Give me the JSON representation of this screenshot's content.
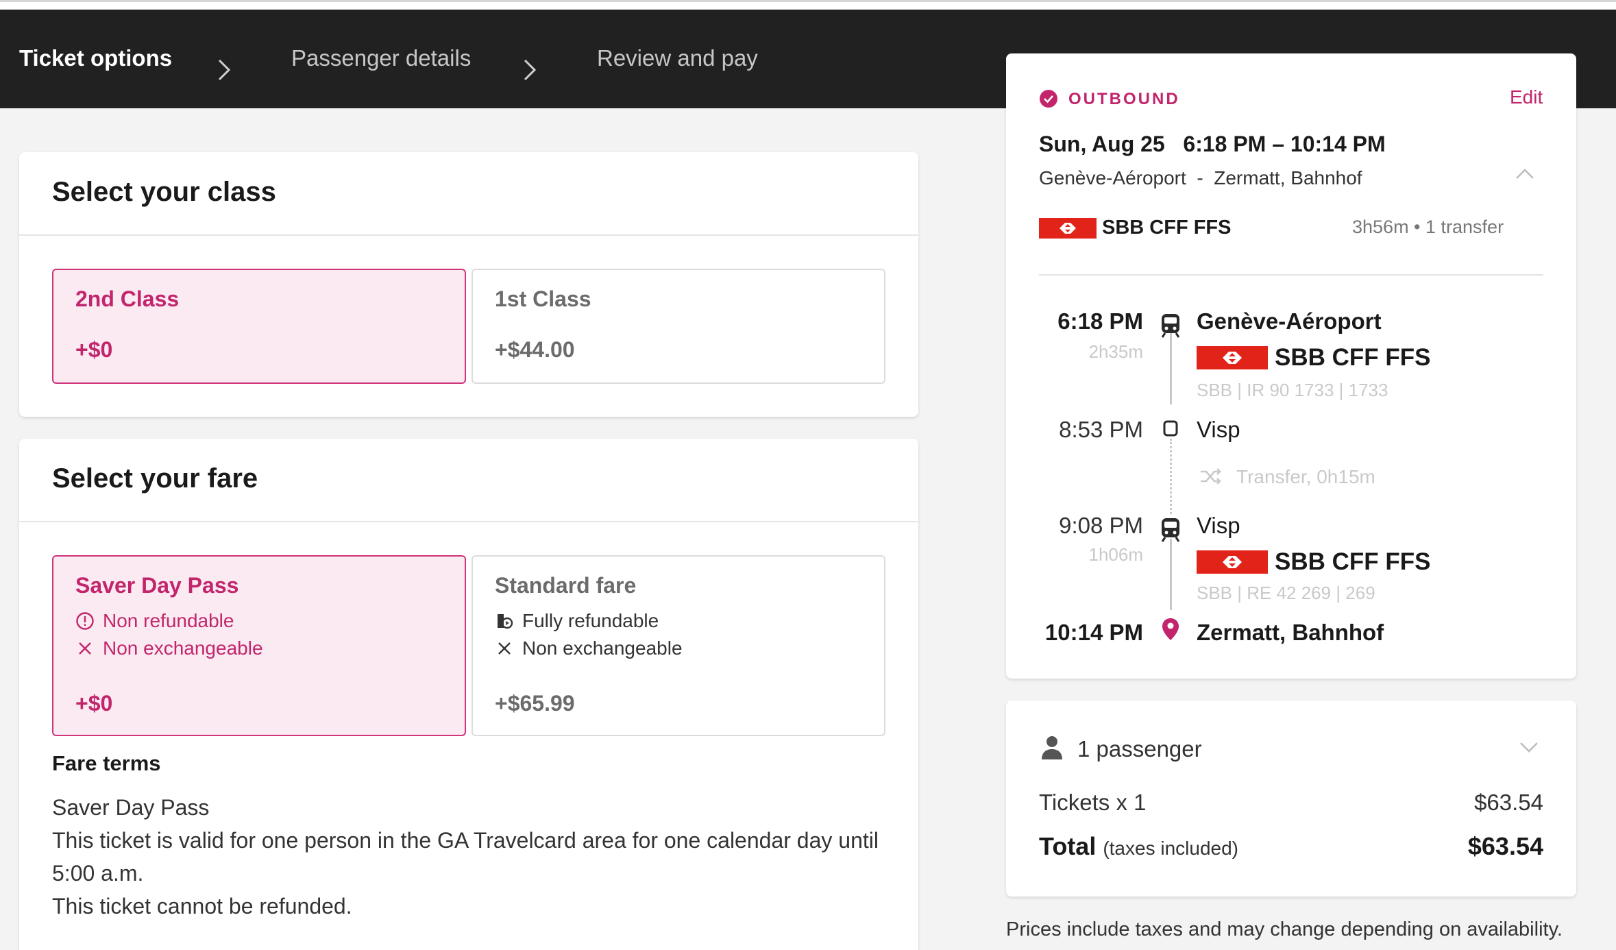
{
  "steps": {
    "ticket_options": "Ticket options",
    "passenger_details": "Passenger details",
    "review_pay": "Review and pay"
  },
  "class_section": {
    "title": "Select your class",
    "options": [
      {
        "name": "2nd Class",
        "price": "+$0",
        "selected": true
      },
      {
        "name": "1st Class",
        "price": "+$44.00",
        "selected": false
      }
    ]
  },
  "fare_section": {
    "title": "Select your fare",
    "options": [
      {
        "name": "Saver Day Pass",
        "features": [
          "Non refundable",
          "Non exchangeable"
        ],
        "price": "+$0",
        "selected": true
      },
      {
        "name": "Standard fare",
        "features": [
          "Fully refundable",
          "Non exchangeable"
        ],
        "price": "+$65.99",
        "selected": false
      }
    ],
    "terms_title": "Fare terms",
    "terms_lines": [
      "Saver Day Pass",
      "This ticket is valid for one person in the GA Travelcard area for one calendar day until",
      "5:00 a.m.",
      "This ticket cannot be refunded."
    ]
  },
  "outbound": {
    "label": "OUTBOUND",
    "edit": "Edit",
    "date": "Sun, Aug 25",
    "time_range": "6:18 PM – 10:14 PM",
    "origin": "Genève-Aéroport",
    "separator": "-",
    "destination": "Zermatt, Bahnhof",
    "operator": "SBB CFF FFS",
    "duration_info": "3h56m • 1 transfer",
    "legs": [
      {
        "dep_time": "6:18 PM",
        "duration": "2h35m",
        "station": "Genève-Aéroport",
        "operator": "SBB CFF FFS",
        "service": "SBB | IR 90 1733 | 1733"
      },
      {
        "arr_time": "8:53 PM",
        "station": "Visp"
      },
      {
        "transfer": "Transfer, 0h15m"
      },
      {
        "dep_time": "9:08 PM",
        "duration": "1h06m",
        "station": "Visp",
        "operator": "SBB CFF FFS",
        "service": "SBB | RE 42 269 | 269"
      },
      {
        "arr_time": "10:14 PM",
        "station": "Zermatt, Bahnhof"
      }
    ]
  },
  "summary": {
    "passengers": "1 passenger",
    "tickets_label": "Tickets x 1",
    "tickets_value": "$63.54",
    "total_label": "Total",
    "total_note": "(taxes included)",
    "total_value": "$63.54"
  },
  "footer_note": "Prices include taxes and may change depending on availability.",
  "colors": {
    "accent": "#c2256c",
    "sbb_red": "#e2231a",
    "header_bg": "#212121"
  }
}
